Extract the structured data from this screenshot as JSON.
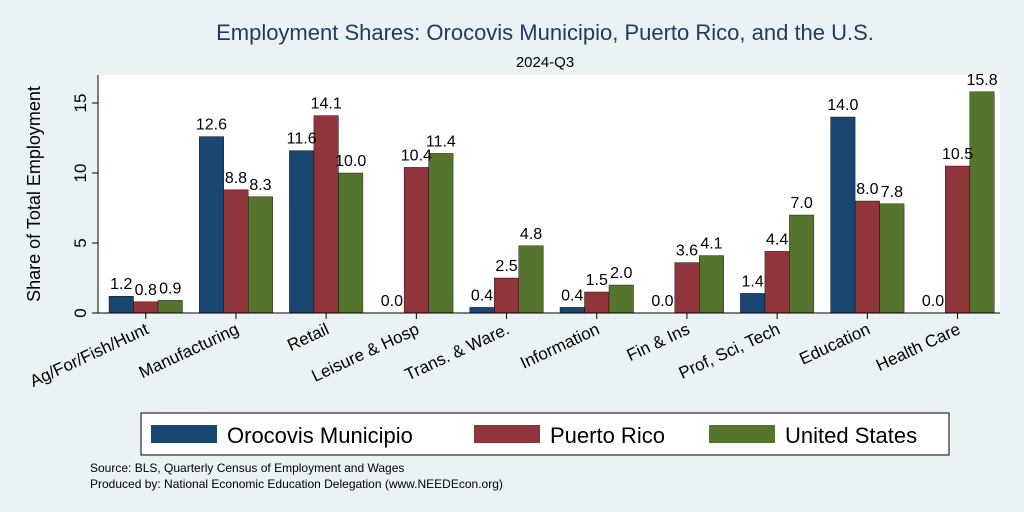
{
  "chart_data": {
    "type": "bar",
    "title": "Employment Shares: Orocovis Municipio, Puerto Rico, and the U.S.",
    "subtitle": "2024-Q3",
    "ylabel": "Share of Total Employment",
    "xlabel": "",
    "ylim": [
      0,
      17
    ],
    "yticks": [
      0,
      5,
      10,
      15
    ],
    "grid": false,
    "legend_position": "bottom",
    "categories": [
      "Ag/For/Fish/Hunt",
      "Manufacturing",
      "Retail",
      "Leisure & Hosp",
      "Trans. & Ware.",
      "Information",
      "Fin & Ins",
      "Prof, Sci, Tech",
      "Education",
      "Health Care"
    ],
    "series": [
      {
        "name": "Orocovis Municipio",
        "color": "#1a476f",
        "values": [
          1.2,
          12.6,
          11.6,
          0.0,
          0.4,
          0.4,
          0.0,
          1.4,
          14.0,
          0.0
        ]
      },
      {
        "name": "Puerto Rico",
        "color": "#90353b",
        "values": [
          0.8,
          8.8,
          14.1,
          10.4,
          2.5,
          1.5,
          3.6,
          4.4,
          8.0,
          10.5
        ]
      },
      {
        "name": "United States",
        "color": "#55752f",
        "values": [
          0.9,
          8.3,
          10.0,
          11.4,
          4.8,
          2.0,
          4.1,
          7.0,
          7.8,
          15.8
        ]
      }
    ]
  },
  "notes": {
    "source": "Source: BLS, Quarterly Census of Employment and Wages",
    "produced": "Produced by: National Economic Education Delegation (www.NEEDEcon.org)"
  }
}
